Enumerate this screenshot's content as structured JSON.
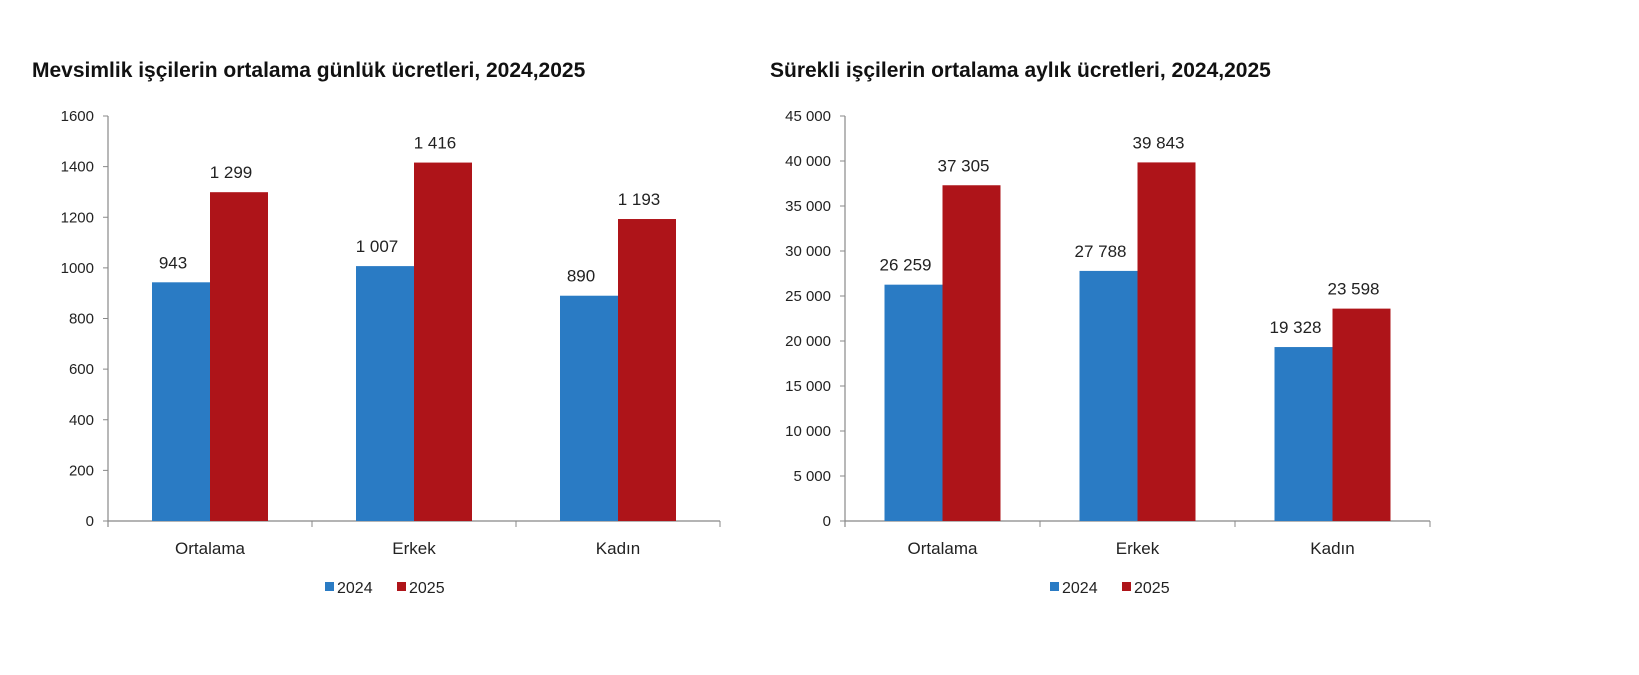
{
  "chart_data": [
    {
      "type": "bar",
      "title": "Mevsimlik işçilerin ortalama günlük ücretleri, 2024,2025",
      "categories": [
        "Ortalama",
        "Erkek",
        "Kadın"
      ],
      "series": [
        {
          "name": "2024",
          "values": [
            943,
            1007,
            890
          ],
          "labels": [
            "943",
            "1 007",
            "890"
          ],
          "color": "#2a7bc4"
        },
        {
          "name": "2025",
          "values": [
            1299,
            1416,
            1193
          ],
          "labels": [
            "1 299",
            "1 416",
            "1 193"
          ],
          "color": "#ae1419"
        }
      ],
      "ylim": [
        0,
        1600
      ],
      "yticks": [
        0,
        200,
        400,
        600,
        800,
        1000,
        1200,
        1400,
        1600
      ],
      "ytick_labels": [
        "0",
        "200",
        "400",
        "600",
        "800",
        "1000",
        "1200",
        "1400",
        "1600"
      ],
      "grid": false,
      "legend": "bottom"
    },
    {
      "type": "bar",
      "title": "Sürekli işçilerin ortalama aylık ücretleri, 2024,2025",
      "categories": [
        "Ortalama",
        "Erkek",
        "Kadın"
      ],
      "series": [
        {
          "name": "2024",
          "values": [
            26259,
            27788,
            19328
          ],
          "labels": [
            "26 259",
            "27 788",
            "19 328"
          ],
          "color": "#2a7bc4"
        },
        {
          "name": "2025",
          "values": [
            37305,
            39843,
            23598
          ],
          "labels": [
            "37 305",
            "39 843",
            "23 598"
          ],
          "color": "#ae1419"
        }
      ],
      "ylim": [
        0,
        45000
      ],
      "yticks": [
        0,
        5000,
        10000,
        15000,
        20000,
        25000,
        30000,
        35000,
        40000,
        45000
      ],
      "ytick_labels": [
        "0",
        "5 000",
        "10 000",
        "15 000",
        "20 000",
        "25 000",
        "30 000",
        "35 000",
        "40 000",
        "45 000"
      ],
      "grid": false,
      "legend": "bottom"
    }
  ]
}
